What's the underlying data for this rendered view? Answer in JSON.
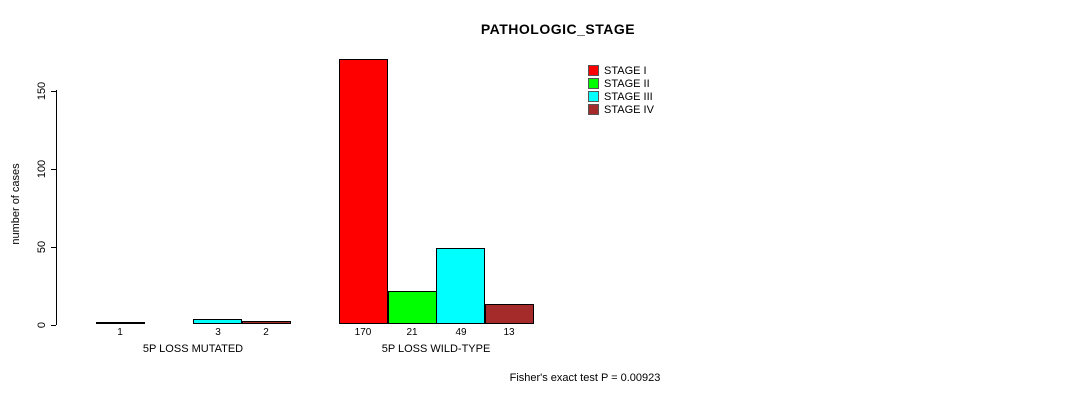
{
  "title": "PATHOLOGIC_STAGE",
  "ylabel": "number of cases",
  "footer": "Fisher's exact test P = 0.00923",
  "legend": {
    "entries": [
      {
        "label": "STAGE I",
        "color": "#FF0000"
      },
      {
        "label": "STAGE II",
        "color": "#00FF00"
      },
      {
        "label": "STAGE III",
        "color": "#00FFFF"
      },
      {
        "label": "STAGE IV",
        "color": "#A52A2A"
      }
    ]
  },
  "chart_data": {
    "type": "bar",
    "title": "PATHOLOGIC_STAGE",
    "xlabel": "",
    "ylabel": "number of cases",
    "ylim": [
      0,
      170
    ],
    "yticks": [
      0,
      50,
      100,
      150
    ],
    "grid": false,
    "legend_position": "top-right",
    "series_labels": [
      "STAGE I",
      "STAGE II",
      "STAGE III",
      "STAGE IV"
    ],
    "colors": [
      "#FF0000",
      "#00FF00",
      "#00FFFF",
      "#A52A2A"
    ],
    "groups": [
      {
        "label": "5P LOSS MUTATED",
        "values": [
          1,
          0,
          3,
          2
        ]
      },
      {
        "label": "5P LOSS WILD-TYPE",
        "values": [
          170,
          21,
          49,
          13
        ]
      }
    ],
    "annotation": "Fisher's exact test P = 0.00923"
  }
}
